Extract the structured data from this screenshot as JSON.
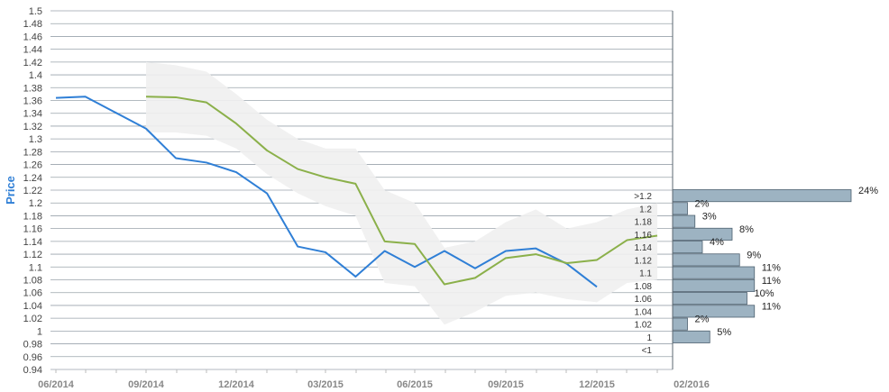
{
  "chart_data": {
    "type": "line",
    "ylabel": "Price",
    "ylim": [
      0.94,
      1.5
    ],
    "yticks": [
      "1.5",
      "1.48",
      "1.46",
      "1.44",
      "1.42",
      "1.4",
      "1.38",
      "1.36",
      "1.34",
      "1.32",
      "1.3",
      "1.28",
      "1.26",
      "1.24",
      "1.22",
      "1.2",
      "1.18",
      "1.16",
      "1.14",
      "1.12",
      "1.1",
      "1.08",
      "1.06",
      "1.04",
      "1.02",
      "1",
      "0.98",
      "0.96",
      "0.94"
    ],
    "xticks": [
      "06/2014",
      "09/2014",
      "12/2014",
      "03/2015",
      "06/2015",
      "09/2015",
      "12/2015",
      "02/2016"
    ],
    "series": [
      {
        "color": "#2f7fd6",
        "x": [
          "2014-06-01",
          "2014-07-01",
          "2014-09-01",
          "2014-10-01",
          "2014-11-01",
          "2014-12-01",
          "2015-01-01",
          "2015-02-01",
          "2015-03-01",
          "2015-04-01",
          "2015-05-01",
          "2015-06-01",
          "2015-07-01",
          "2015-08-01",
          "2015-09-01",
          "2015-10-01",
          "2015-11-01",
          "2015-12-01"
        ],
        "y": [
          1.364,
          1.366,
          1.316,
          1.27,
          1.263,
          1.248,
          1.215,
          1.132,
          1.123,
          1.085,
          1.125,
          1.1,
          1.125,
          1.098,
          1.125,
          1.129,
          1.105,
          1.069
        ]
      },
      {
        "color": "#8bb04a",
        "x": [
          "2014-09-01",
          "2014-10-01",
          "2014-11-01",
          "2014-12-01",
          "2015-01-01",
          "2015-02-01",
          "2015-03-01",
          "2015-04-01",
          "2015-05-01",
          "2015-06-01",
          "2015-07-01",
          "2015-08-01",
          "2015-09-01",
          "2015-10-01",
          "2015-11-01",
          "2015-12-01",
          "2016-01-01",
          "2016-02-01"
        ],
        "y": [
          1.366,
          1.365,
          1.357,
          1.324,
          1.282,
          1.253,
          1.24,
          1.23,
          1.14,
          1.136,
          1.073,
          1.083,
          1.114,
          1.12,
          1.106,
          1.111,
          1.142,
          1.149
        ]
      }
    ],
    "band": {
      "color": "#efefef",
      "x": [
        "2014-09-01",
        "2014-10-01",
        "2014-11-01",
        "2014-12-01",
        "2015-01-01",
        "2015-02-01",
        "2015-03-01",
        "2015-04-01",
        "2015-05-01",
        "2015-06-01",
        "2015-07-01",
        "2015-08-01",
        "2015-09-01",
        "2015-10-01",
        "2015-11-01",
        "2015-12-01",
        "2016-01-01",
        "2016-02-01"
      ],
      "upper": [
        1.42,
        1.415,
        1.405,
        1.37,
        1.33,
        1.3,
        1.285,
        1.285,
        1.22,
        1.2,
        1.13,
        1.14,
        1.17,
        1.19,
        1.16,
        1.17,
        1.19,
        1.2
      ],
      "lower": [
        1.31,
        1.31,
        1.305,
        1.285,
        1.245,
        1.215,
        1.195,
        1.18,
        1.075,
        1.07,
        1.01,
        1.03,
        1.055,
        1.06,
        1.05,
        1.045,
        1.075,
        1.08
      ]
    },
    "histogram": {
      "color": "#9db3c2",
      "bins": [
        {
          "label": ">1.2",
          "percent": 24
        },
        {
          "label": "1.2",
          "percent": 2
        },
        {
          "label": "1.18",
          "percent": 3
        },
        {
          "label": "1.16",
          "percent": 8
        },
        {
          "label": "1.14",
          "percent": 4
        },
        {
          "label": "1.12",
          "percent": 9
        },
        {
          "label": "1.1",
          "percent": 11
        },
        {
          "label": "1.08",
          "percent": 11
        },
        {
          "label": "1.06",
          "percent": 10
        },
        {
          "label": "1.04",
          "percent": 11
        },
        {
          "label": "1.02",
          "percent": 2
        },
        {
          "label": "1",
          "percent": 5
        },
        {
          "label": "<1",
          "percent": 0
        }
      ]
    }
  }
}
